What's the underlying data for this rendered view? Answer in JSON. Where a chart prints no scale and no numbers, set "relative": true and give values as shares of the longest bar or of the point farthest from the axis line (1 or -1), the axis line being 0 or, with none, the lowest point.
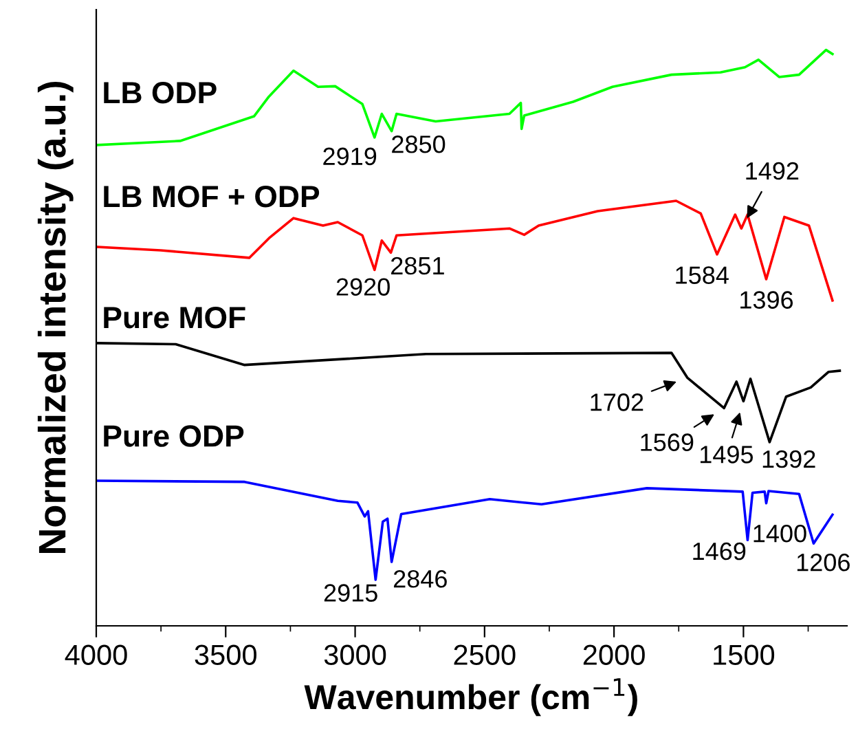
{
  "chart_data": {
    "type": "line",
    "relative": true,
    "xlabel": "Wavenumber (cm$^{−1}$)",
    "ylabel": "Normalized intensity (a.u.)",
    "xlim": [
      4000,
      1100
    ],
    "xticks": [
      4000,
      {
        "value": 3750,
        "label": null
      },
      3500,
      {
        "value": 3250,
        "label": null
      },
      3000,
      {
        "value": 2750,
        "label": null
      },
      2500,
      {
        "value": 2250,
        "label": null
      },
      2000,
      {
        "value": 1750,
        "label": null
      },
      1500,
      {
        "value": 1250,
        "label": null
      }
    ],
    "grid": false,
    "legend": false,
    "marker": "none",
    "line_style": "solid",
    "series": [
      {
        "name": "LB ODP",
        "color": "#00ff00",
        "x": [
          3996,
          3676,
          3390,
          3333,
          3238,
          3143,
          3077,
          2972,
          2925,
          2897,
          2859,
          2840,
          2689,
          2404,
          2360,
          2357,
          2347,
          2158,
          2006,
          1778,
          1589,
          1494,
          1442,
          1362,
          1285,
          1181,
          1156
        ],
        "values": [
          0.835,
          0.842,
          0.885,
          0.919,
          0.964,
          0.936,
          0.937,
          0.906,
          0.848,
          0.889,
          0.859,
          0.889,
          0.876,
          0.889,
          0.908,
          0.863,
          0.886,
          0.91,
          0.936,
          0.957,
          0.961,
          0.97,
          0.983,
          0.953,
          0.957,
          1.0,
          0.993
        ]
      },
      {
        "name": "LB MOF + ODP",
        "color": "#ff0000",
        "x": [
          3996,
          3751,
          3409,
          3333,
          3238,
          3124,
          3067,
          2972,
          2925,
          2897,
          2862,
          2840,
          2404,
          2347,
          2291,
          2063,
          1760,
          1665,
          1602,
          1532,
          1508,
          1484,
          1412,
          1342,
          1247,
          1156
        ],
        "values": [
          0.658,
          0.652,
          0.639,
          0.673,
          0.708,
          0.695,
          0.701,
          0.678,
          0.618,
          0.669,
          0.648,
          0.678,
          0.69,
          0.679,
          0.695,
          0.72,
          0.738,
          0.716,
          0.645,
          0.714,
          0.69,
          0.714,
          0.602,
          0.71,
          0.695,
          0.565
        ]
      },
      {
        "name": "Pure MOF",
        "color": "#000000",
        "x": [
          3996,
          3693,
          3427,
          2726,
          1778,
          1717,
          1575,
          1527,
          1500,
          1473,
          1399,
          1335,
          1240,
          1171,
          1128
        ],
        "values": [
          0.491,
          0.489,
          0.453,
          0.472,
          0.474,
          0.431,
          0.378,
          0.424,
          0.39,
          0.429,
          0.319,
          0.398,
          0.414,
          0.441,
          0.443
        ]
      },
      {
        "name": "Pure ODP",
        "color": "#0000ff",
        "x": [
          3996,
          3427,
          3067,
          2991,
          2963,
          2950,
          2921,
          2893,
          2875,
          2859,
          2822,
          2480,
          2280,
          1873,
          1503,
          1484,
          1465,
          1418,
          1412,
          1403,
          1285,
          1229,
          1156
        ],
        "values": [
          0.252,
          0.25,
          0.217,
          0.214,
          0.19,
          0.199,
          0.08,
          0.181,
          0.186,
          0.111,
          0.194,
          0.22,
          0.211,
          0.239,
          0.233,
          0.149,
          0.231,
          0.233,
          0.213,
          0.234,
          0.229,
          0.143,
          0.193
        ]
      }
    ],
    "annotations": [
      {
        "text": "2919",
        "x": 2925,
        "y": 0.848
      },
      {
        "text": "2850",
        "x": 2859,
        "y": 0.859
      },
      {
        "text": "2920",
        "x": 2925,
        "y": 0.618
      },
      {
        "text": "2851",
        "x": 2862,
        "y": 0.648
      },
      {
        "text": "1584",
        "x": 1602,
        "y": 0.645
      },
      {
        "text": "1492",
        "x": 1508,
        "y": 0.69
      },
      {
        "text": "1396",
        "x": 1412,
        "y": 0.602
      },
      {
        "text": "1702",
        "x": 1717,
        "y": 0.431
      },
      {
        "text": "1569",
        "x": 1575,
        "y": 0.378
      },
      {
        "text": "1495",
        "x": 1500,
        "y": 0.39
      },
      {
        "text": "1392",
        "x": 1399,
        "y": 0.319
      },
      {
        "text": "2915",
        "x": 2921,
        "y": 0.08
      },
      {
        "text": "2846",
        "x": 2859,
        "y": 0.111
      },
      {
        "text": "1469",
        "x": 1484,
        "y": 0.149
      },
      {
        "text": "1400",
        "x": 1412,
        "y": 0.213
      },
      {
        "text": "1206",
        "x": 1229,
        "y": 0.143
      }
    ]
  }
}
